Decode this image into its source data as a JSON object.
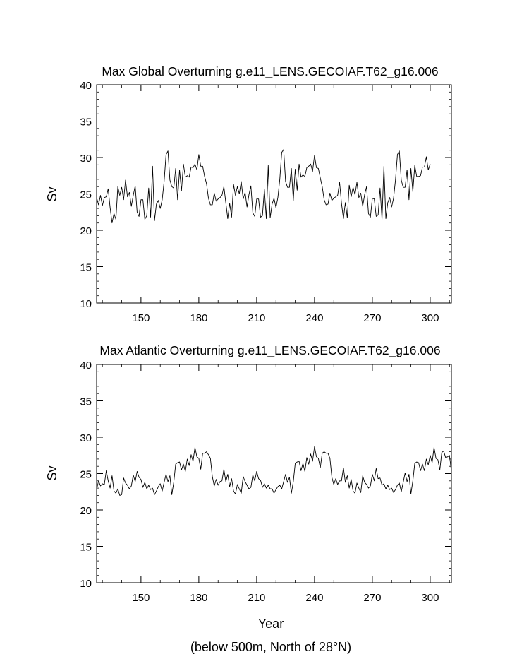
{
  "chart_data": [
    {
      "type": "line",
      "title": "Max Global Overturning g.e11_LENS.GECOIAF.T62_g16.006",
      "ylabel": "Sv",
      "xlim": [
        127,
        311
      ],
      "ylim": [
        10,
        40
      ],
      "x_ticks": [
        "150",
        "180",
        "210",
        "240",
        "270",
        "300"
      ],
      "y_ticks": [
        "10",
        "15",
        "20",
        "25",
        "30",
        "35",
        "40"
      ],
      "x_start": 127,
      "values": [
        24.5,
        23.5,
        24.8,
        23.4,
        24.5,
        24.6,
        25.7,
        23.1,
        21.0,
        22.3,
        21.5,
        26.0,
        24.8,
        25.9,
        24.2,
        26.9,
        24.6,
        25.2,
        23.3,
        24.8,
        26.1,
        22.5,
        21.9,
        24.2,
        24.2,
        21.5,
        22.0,
        25.8,
        21.8,
        28.8,
        21.3,
        23.6,
        24.1,
        23.0,
        24.2,
        26.7,
        30.4,
        30.9,
        26.9,
        26.0,
        25.8,
        28.5,
        24.2,
        28.3,
        25.4,
        29.1,
        27.3,
        27.5,
        27.3,
        28.7,
        28.6,
        29.1,
        28.3,
        30.4,
        28.8,
        28.8,
        27.4,
        26.4,
        24.4,
        23.5,
        23.5,
        25.1,
        24.0,
        24.3,
        24.5,
        24.8,
        26.0,
        23.8,
        21.6,
        23.7,
        21.8,
        26.3,
        24.8,
        26.0,
        25.0,
        26.7,
        24.3,
        25.2,
        23.2,
        24.9,
        26.1,
        22.4,
        21.9,
        24.3,
        24.3,
        21.8,
        22.0,
        25.6,
        21.6,
        28.9,
        21.7,
        23.6,
        24.4,
        23.1,
        24.5,
        27.0,
        30.7,
        31.1,
        26.7,
        25.9,
        25.9,
        28.5,
        24.1,
        28.4,
        25.5,
        29.1,
        27.3,
        27.6,
        27.4,
        28.6,
        28.8,
        29.1,
        28.1,
        30.3,
        28.6,
        28.5,
        27.2,
        26.0,
        24.2,
        23.5,
        23.6,
        25.1,
        24.1,
        24.4,
        24.6,
        24.8,
        26.6,
        23.7,
        21.6,
        23.8,
        21.7,
        26.2,
        24.6,
        25.9,
        24.9,
        26.6,
        24.5,
        25.1,
        23.3,
        24.9,
        26.0,
        22.3,
        21.8,
        24.4,
        24.3,
        21.9,
        22.1,
        25.8,
        21.5,
        28.8,
        21.6,
        23.8,
        24.5,
        23.2,
        24.4,
        26.9,
        30.4,
        30.9,
        26.9,
        25.9,
        25.9,
        28.3,
        24.2,
        28.5,
        25.3,
        28.9,
        27.4,
        27.4,
        27.5,
        28.7,
        28.7,
        30.1,
        28.3,
        29.1
      ]
    },
    {
      "type": "line",
      "title": "Max Atlantic Overturning g.e11_LENS.GECOIAF.T62_g16.006",
      "xlabel": "Year",
      "ylabel": "Sv",
      "footnote": "(below 500m, North of 28°N)",
      "xlim": [
        127,
        311
      ],
      "ylim": [
        10,
        40
      ],
      "x_ticks": [
        "150",
        "180",
        "210",
        "240",
        "270",
        "300"
      ],
      "y_ticks": [
        "10",
        "15",
        "20",
        "25",
        "30",
        "35",
        "40"
      ],
      "x_start": 127,
      "values": [
        22.8,
        24.0,
        23.3,
        23.6,
        23.5,
        25.4,
        24.0,
        23.0,
        24.7,
        22.6,
        22.3,
        22.9,
        22.0,
        22.1,
        24.4,
        23.7,
        23.4,
        22.9,
        23.3,
        24.8,
        23.9,
        25.3,
        24.5,
        24.2,
        23.1,
        23.8,
        22.9,
        23.4,
        22.8,
        23.0,
        22.1,
        22.6,
        23.2,
        23.6,
        22.6,
        23.8,
        24.9,
        23.9,
        24.7,
        22.1,
        23.8,
        26.3,
        26.5,
        26.6,
        25.5,
        26.3,
        25.3,
        27.0,
        26.1,
        27.6,
        26.7,
        28.6,
        27.3,
        27.1,
        25.6,
        27.8,
        27.8,
        28.0,
        27.6,
        27.1,
        24.6,
        23.3,
        24.2,
        23.4,
        23.9,
        24.0,
        25.6,
        23.9,
        24.9,
        23.2,
        24.3,
        22.6,
        22.2,
        23.5,
        22.9,
        22.3,
        24.6,
        23.9,
        23.4,
        22.9,
        23.1,
        24.8,
        24.0,
        25.3,
        24.3,
        24.1,
        23.1,
        23.6,
        23.0,
        23.4,
        22.9,
        22.9,
        22.3,
        22.8,
        23.2,
        23.4,
        22.9,
        23.9,
        24.9,
        23.8,
        24.5,
        22.3,
        23.9,
        26.4,
        26.6,
        26.7,
        25.4,
        26.4,
        25.3,
        27.2,
        26.3,
        27.7,
        26.7,
        28.7,
        27.3,
        27.1,
        25.8,
        27.8,
        28.0,
        27.8,
        27.8,
        27.1,
        24.5,
        23.5,
        24.3,
        23.5,
        24.0,
        24.0,
        25.8,
        23.8,
        24.7,
        23.0,
        24.2,
        22.6,
        22.3,
        23.7,
        23.0,
        22.4,
        24.7,
        23.8,
        23.5,
        23.0,
        23.3,
        24.9,
        24.0,
        25.7,
        24.3,
        24.4,
        23.4,
        23.6,
        22.9,
        23.4,
        22.8,
        23.0,
        22.4,
        22.8,
        23.4,
        23.7,
        22.5,
        23.8,
        25.1,
        23.9,
        24.9,
        22.2,
        24.0,
        26.4,
        26.6,
        26.5,
        25.4,
        26.3,
        25.4,
        27.0,
        26.2,
        27.5,
        26.5,
        28.6,
        27.1,
        26.9,
        25.5,
        27.9,
        28.1,
        27.2,
        27.3,
        27.5,
        25.3
      ]
    }
  ]
}
